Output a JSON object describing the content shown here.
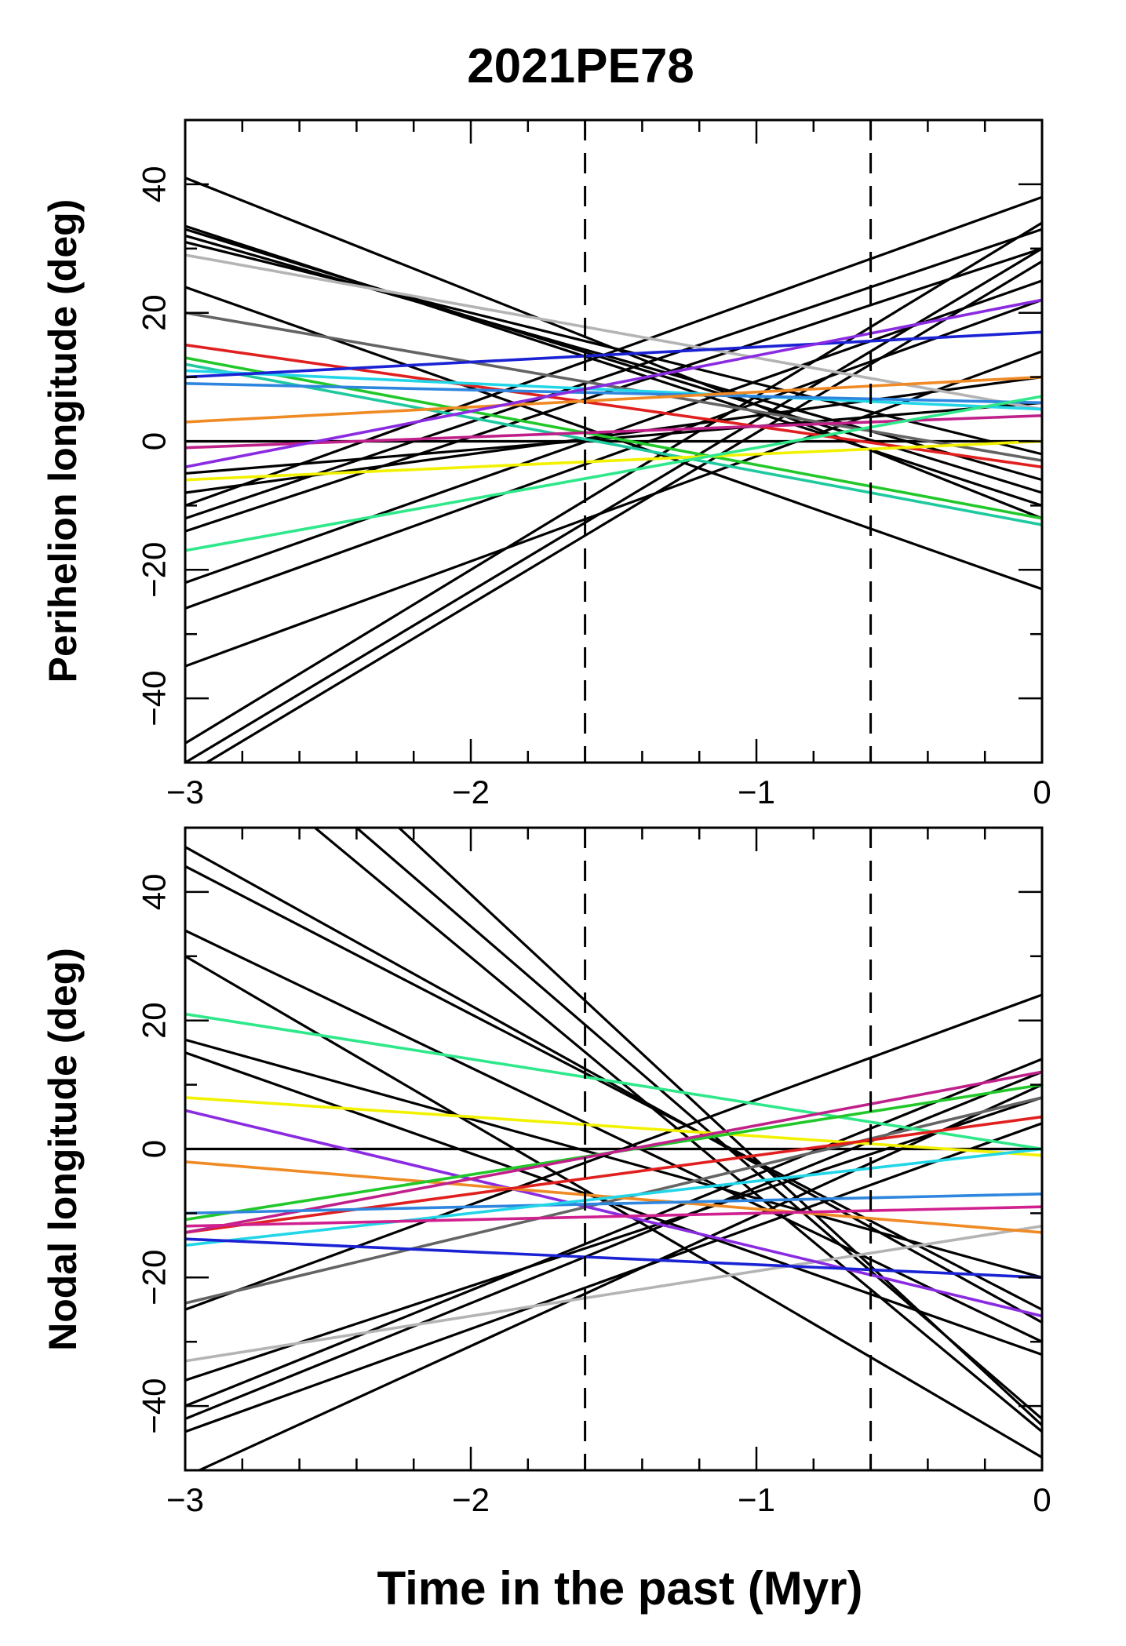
{
  "figure": {
    "title": "2021PE78",
    "xlabel": "Time in the past (Myr)"
  },
  "chart_data": [
    {
      "type": "line",
      "title": "2021PE78",
      "panel": "top",
      "xlabel": "Time in the past (Myr)",
      "ylabel": "Perihelion longitude (deg)",
      "xlim": [
        -3,
        0
      ],
      "ylim": [
        -50,
        50
      ],
      "xticks": [
        -3,
        -2,
        -1,
        0
      ],
      "xtick_labels": [
        "−3",
        "−2",
        "−1",
        "0"
      ],
      "yticks": [
        -40,
        -20,
        0,
        20,
        40
      ],
      "ytick_labels": [
        "−40",
        "−20",
        "0",
        "20",
        "40"
      ],
      "vlines": [
        -1.6,
        -0.6
      ],
      "series": [
        {
          "name": "black-01",
          "color": "#000000",
          "x": [
            -3,
            0
          ],
          "y": [
            41,
            -12
          ]
        },
        {
          "name": "black-02",
          "color": "#000000",
          "x": [
            -3,
            0
          ],
          "y": [
            33.5,
            -10
          ]
        },
        {
          "name": "black-03",
          "color": "#000000",
          "x": [
            -3,
            0
          ],
          "y": [
            33,
            -8
          ]
        },
        {
          "name": "black-04",
          "color": "#000000",
          "x": [
            -3,
            0
          ],
          "y": [
            32,
            -6
          ]
        },
        {
          "name": "black-05",
          "color": "#000000",
          "x": [
            -3,
            0
          ],
          "y": [
            31,
            -2
          ]
        },
        {
          "name": "black-06",
          "color": "#000000",
          "x": [
            -3,
            0
          ],
          "y": [
            24,
            -23
          ]
        },
        {
          "name": "black-07",
          "color": "#000000",
          "x": [
            -3,
            0
          ],
          "y": [
            -10,
            38
          ]
        },
        {
          "name": "black-08",
          "color": "#000000",
          "x": [
            -3,
            0
          ],
          "y": [
            -12,
            33
          ]
        },
        {
          "name": "black-09",
          "color": "#000000",
          "x": [
            -3,
            0
          ],
          "y": [
            -14,
            30
          ]
        },
        {
          "name": "black-10",
          "color": "#000000",
          "x": [
            -3,
            0
          ],
          "y": [
            -22,
            25
          ]
        },
        {
          "name": "black-11",
          "color": "#000000",
          "x": [
            -3,
            0
          ],
          "y": [
            -26,
            22
          ]
        },
        {
          "name": "black-12",
          "color": "#000000",
          "x": [
            -3,
            0
          ],
          "y": [
            -35,
            14
          ]
        },
        {
          "name": "black-13",
          "color": "#000000",
          "x": [
            -3,
            0
          ],
          "y": [
            -47,
            34
          ]
        },
        {
          "name": "black-14",
          "color": "#000000",
          "x": [
            -3,
            0
          ],
          "y": [
            -50,
            30
          ]
        },
        {
          "name": "black-15",
          "color": "#000000",
          "x": [
            -3,
            0
          ],
          "y": [
            -52,
            28
          ]
        },
        {
          "name": "black-16",
          "color": "#000000",
          "x": [
            -3,
            0
          ],
          "y": [
            -8,
            10
          ]
        },
        {
          "name": "black-17",
          "color": "#000000",
          "x": [
            -3,
            0
          ],
          "y": [
            -5,
            6
          ]
        },
        {
          "name": "black-18",
          "color": "#000000",
          "x": [
            -3,
            0
          ],
          "y": [
            0,
            0
          ]
        },
        {
          "name": "gray-light",
          "color": "#b4b4b4",
          "x": [
            -3,
            0
          ],
          "y": [
            29,
            5
          ]
        },
        {
          "name": "gray-dark",
          "color": "#646464",
          "x": [
            -3,
            0
          ],
          "y": [
            20,
            -3
          ]
        },
        {
          "name": "red",
          "color": "#e0201f",
          "x": [
            -3,
            0
          ],
          "y": [
            15,
            -4
          ]
        },
        {
          "name": "green",
          "color": "#22c82a",
          "x": [
            -3,
            0
          ],
          "y": [
            13,
            -12
          ]
        },
        {
          "name": "teal",
          "color": "#1fc9a0",
          "x": [
            -3,
            0
          ],
          "y": [
            12,
            -13
          ]
        },
        {
          "name": "cyan",
          "color": "#22d6e8",
          "x": [
            -3,
            0
          ],
          "y": [
            11,
            5
          ]
        },
        {
          "name": "blue-light",
          "color": "#2e86de",
          "x": [
            -3,
            0
          ],
          "y": [
            9,
            6
          ]
        },
        {
          "name": "blue",
          "color": "#1a22d4",
          "x": [
            -3,
            0
          ],
          "y": [
            10,
            17
          ]
        },
        {
          "name": "orange",
          "color": "#f08a24",
          "x": [
            -3,
            0
          ],
          "y": [
            3,
            10
          ]
        },
        {
          "name": "magenta",
          "color": "#c0208a",
          "x": [
            -3,
            0
          ],
          "y": [
            -1,
            4
          ]
        },
        {
          "name": "purple",
          "color": "#8a2be2",
          "x": [
            -3,
            0
          ],
          "y": [
            -4,
            22
          ]
        },
        {
          "name": "yellow",
          "color": "#f2f200",
          "x": [
            -3,
            0
          ],
          "y": [
            -6,
            0
          ]
        },
        {
          "name": "spring-green",
          "color": "#2ee88a",
          "x": [
            -3,
            0
          ],
          "y": [
            -17,
            7
          ]
        }
      ]
    },
    {
      "type": "line",
      "panel": "bottom",
      "xlabel": "Time in the past (Myr)",
      "ylabel": "Nodal longitude (deg)",
      "xlim": [
        -3,
        0
      ],
      "ylim": [
        -50,
        50
      ],
      "xticks": [
        -3,
        -2,
        -1,
        0
      ],
      "xtick_labels": [
        "−3",
        "−2",
        "−1",
        "0"
      ],
      "yticks": [
        -40,
        -20,
        0,
        20,
        40
      ],
      "ytick_labels": [
        "−40",
        "−20",
        "0",
        "20",
        "40"
      ],
      "vlines": [
        -1.6,
        -0.6
      ],
      "series": [
        {
          "name": "black-01",
          "color": "#000000",
          "x": [
            -3,
            0
          ],
          "y": [
            47,
            -27
          ]
        },
        {
          "name": "black-02",
          "color": "#000000",
          "x": [
            -3,
            0
          ],
          "y": [
            44,
            -25
          ]
        },
        {
          "name": "black-03",
          "color": "#000000",
          "x": [
            -3,
            0
          ],
          "y": [
            34,
            -30
          ]
        },
        {
          "name": "black-04",
          "color": "#000000",
          "x": [
            -3,
            0
          ],
          "y": [
            30,
            -48
          ]
        },
        {
          "name": "black-05",
          "color": "#000000",
          "x": [
            -2.6,
            0
          ],
          "y": [
            52,
            -44
          ]
        },
        {
          "name": "black-06",
          "color": "#000000",
          "x": [
            -2.3,
            0
          ],
          "y": [
            52,
            -43
          ]
        },
        {
          "name": "black-07",
          "color": "#000000",
          "x": [
            -2.4,
            0
          ],
          "y": [
            50,
            -42
          ]
        },
        {
          "name": "black-08",
          "color": "#000000",
          "x": [
            -3,
            0
          ],
          "y": [
            17,
            -20
          ]
        },
        {
          "name": "black-09",
          "color": "#000000",
          "x": [
            -3,
            0
          ],
          "y": [
            15,
            -32
          ]
        },
        {
          "name": "black-10",
          "color": "#000000",
          "x": [
            -3,
            0
          ],
          "y": [
            0,
            0
          ]
        },
        {
          "name": "black-11",
          "color": "#000000",
          "x": [
            -3,
            0
          ],
          "y": [
            -25,
            24
          ]
        },
        {
          "name": "black-12",
          "color": "#000000",
          "x": [
            -3,
            0
          ],
          "y": [
            -40,
            14
          ]
        },
        {
          "name": "black-13",
          "color": "#000000",
          "x": [
            -3,
            0
          ],
          "y": [
            -42,
            12
          ]
        },
        {
          "name": "black-14",
          "color": "#000000",
          "x": [
            -3,
            0
          ],
          "y": [
            -51,
            10
          ]
        },
        {
          "name": "black-15",
          "color": "#000000",
          "x": [
            -3,
            0
          ],
          "y": [
            -36,
            8
          ]
        },
        {
          "name": "black-16",
          "color": "#000000",
          "x": [
            -3,
            0
          ],
          "y": [
            -44,
            4
          ]
        },
        {
          "name": "gray-light",
          "color": "#b4b4b4",
          "x": [
            -3,
            0
          ],
          "y": [
            -33,
            -12
          ]
        },
        {
          "name": "gray-dark",
          "color": "#646464",
          "x": [
            -3,
            0
          ],
          "y": [
            -24,
            8
          ]
        },
        {
          "name": "spring-green",
          "color": "#2ee88a",
          "x": [
            -3,
            0
          ],
          "y": [
            21,
            0
          ]
        },
        {
          "name": "yellow",
          "color": "#f2f200",
          "x": [
            -3,
            0
          ],
          "y": [
            8,
            -1
          ]
        },
        {
          "name": "purple",
          "color": "#8a2be2",
          "x": [
            -3,
            0
          ],
          "y": [
            6,
            -26
          ]
        },
        {
          "name": "orange",
          "color": "#f08a24",
          "x": [
            -3,
            0
          ],
          "y": [
            -2,
            -13
          ]
        },
        {
          "name": "green",
          "color": "#22c82a",
          "x": [
            -3,
            0
          ],
          "y": [
            -11,
            10
          ]
        },
        {
          "name": "red",
          "color": "#e0201f",
          "x": [
            -3,
            0
          ],
          "y": [
            -13,
            5
          ]
        },
        {
          "name": "magenta",
          "color": "#c0208a",
          "x": [
            -3,
            0
          ],
          "y": [
            -13,
            12
          ]
        },
        {
          "name": "blue-light",
          "color": "#2e86de",
          "x": [
            -3,
            0
          ],
          "y": [
            -10,
            -7
          ]
        },
        {
          "name": "cyan",
          "color": "#22d6e8",
          "x": [
            -3,
            0
          ],
          "y": [
            -15,
            0
          ]
        },
        {
          "name": "blue",
          "color": "#1a22d4",
          "x": [
            -3,
            0
          ],
          "y": [
            -14,
            -20
          ]
        },
        {
          "name": "pink",
          "color": "#d02090",
          "x": [
            -3,
            0
          ],
          "y": [
            -12,
            -9
          ]
        }
      ]
    }
  ]
}
